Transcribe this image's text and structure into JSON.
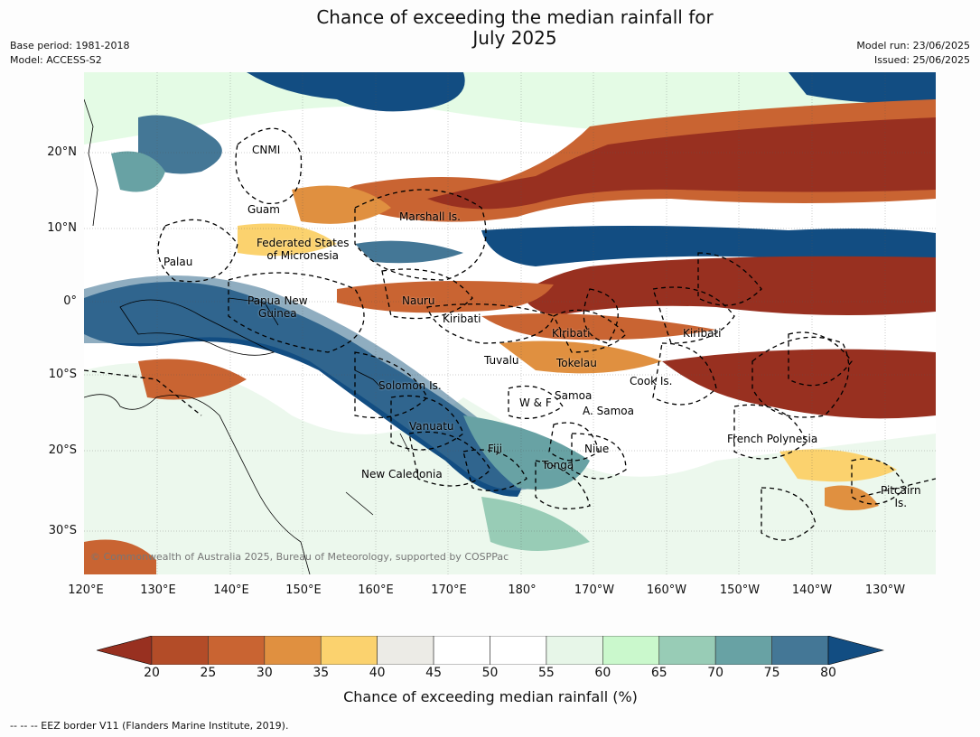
{
  "title_line1": "Chance of exceeding the median rainfall for",
  "title_line2": "July 2025",
  "meta_left_1": "Base period: 1981-2018",
  "meta_left_2": "Model: ACCESS-S2",
  "meta_right_1": "Model run: 23/06/2025",
  "meta_right_2": "Issued: 25/06/2025",
  "lat_labels": [
    "20°N",
    "10°N",
    "0°",
    "10°S",
    "20°S",
    "30°S"
  ],
  "lon_labels": [
    "120°E",
    "130°E",
    "140°E",
    "150°E",
    "160°E",
    "170°E",
    "180°",
    "170°W",
    "160°W",
    "150°W",
    "140°W",
    "130°W"
  ],
  "places": {
    "cnmi": "CNMI",
    "guam": "Guam",
    "marshall": "Marshall Is.",
    "fsm_1": "Federated States",
    "fsm_2": "of Micronesia",
    "palau": "Palau",
    "png_1": "Papua New",
    "png_2": "Guinea",
    "nauru": "Nauru",
    "kiribati_w": "Kiribati",
    "kiribati_c": "Kiribati",
    "kiribati_e": "Kiribati",
    "tuvalu": "Tuvalu",
    "tokelau": "Tokelau",
    "cook": "Cook Is.",
    "solomon": "Solomon Is.",
    "wf": "W & F",
    "samoa": "Samoa",
    "asamoa": "A. Samoa",
    "vanuatu": "Vanuatu",
    "fiji": "Fiji",
    "niue": "Niue",
    "tonga": "Tonga",
    "french_polynesia": "French Polynesia",
    "new_caledonia": "New Caledonia",
    "pitcairn_1": "Pitcairn",
    "pitcairn_2": "Is."
  },
  "copyright": "© Commonwealth of Australia 2025, Bureau of Meteorology, supported by COSPPac",
  "colorbar": {
    "label": "Chance of exceeding median rainfall (%)",
    "ticks": [
      "20",
      "25",
      "30",
      "35",
      "40",
      "45",
      "50",
      "55",
      "60",
      "65",
      "70",
      "75",
      "80"
    ],
    "colors": [
      "#983020",
      "#b34c28",
      "#c96432",
      "#e09040",
      "#fbd26e",
      "#ecebe6",
      "#ffffff",
      "#ffffff",
      "#e7f6e8",
      "#caf8cc",
      "#98ccb6",
      "#68a2a4",
      "#447796",
      "#124d82"
    ]
  },
  "footnote": "--  --  -- EEZ border V11 (Flanders Marine Institute, 2019)."
}
